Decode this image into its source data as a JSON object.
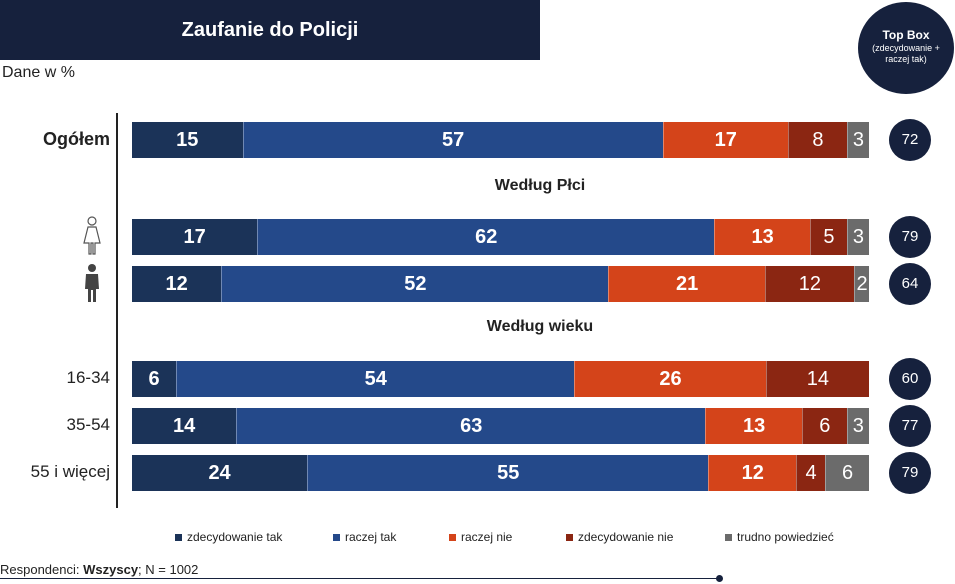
{
  "chart_data": {
    "type": "bar",
    "title": "Zaufanie do Policji",
    "subtitle": "Dane w %",
    "top_box": {
      "title": "Top Box",
      "subtitle": "(zdecydowanie + raczej tak)"
    },
    "series": [
      {
        "name": "zdecydowanie tak",
        "color": "#1b3358"
      },
      {
        "name": "raczej tak",
        "color": "#24498a"
      },
      {
        "name": "raczej nie",
        "color": "#d4441a"
      },
      {
        "name": "zdecydowanie nie",
        "color": "#8b2612"
      },
      {
        "name": "trudno powiedzieć",
        "color": "#6b6b6b"
      }
    ],
    "sections": [
      {
        "title": "Według Płci"
      },
      {
        "title": "Według wieku"
      }
    ],
    "rows": [
      {
        "label": "Ogółem",
        "icon": "",
        "values": [
          15,
          57,
          17,
          8,
          3
        ],
        "top_box": 72
      },
      {
        "label": "",
        "icon": "female-icon",
        "values": [
          17,
          62,
          13,
          5,
          3
        ],
        "top_box": 79
      },
      {
        "label": "",
        "icon": "male-icon",
        "values": [
          12,
          52,
          21,
          12,
          2
        ],
        "top_box": 64
      },
      {
        "label": "16-34",
        "icon": "",
        "values": [
          6,
          54,
          26,
          14,
          0
        ],
        "top_box": 60
      },
      {
        "label": "35-54",
        "icon": "",
        "values": [
          14,
          63,
          13,
          6,
          3
        ],
        "top_box": 77
      },
      {
        "label": "55 i więcej",
        "icon": "",
        "values": [
          24,
          55,
          12,
          4,
          6
        ],
        "top_box": 79
      }
    ]
  },
  "footnote": {
    "prefix": "Respondenci: ",
    "group": "Wszyscy",
    "suffix": "; N = 1002"
  }
}
